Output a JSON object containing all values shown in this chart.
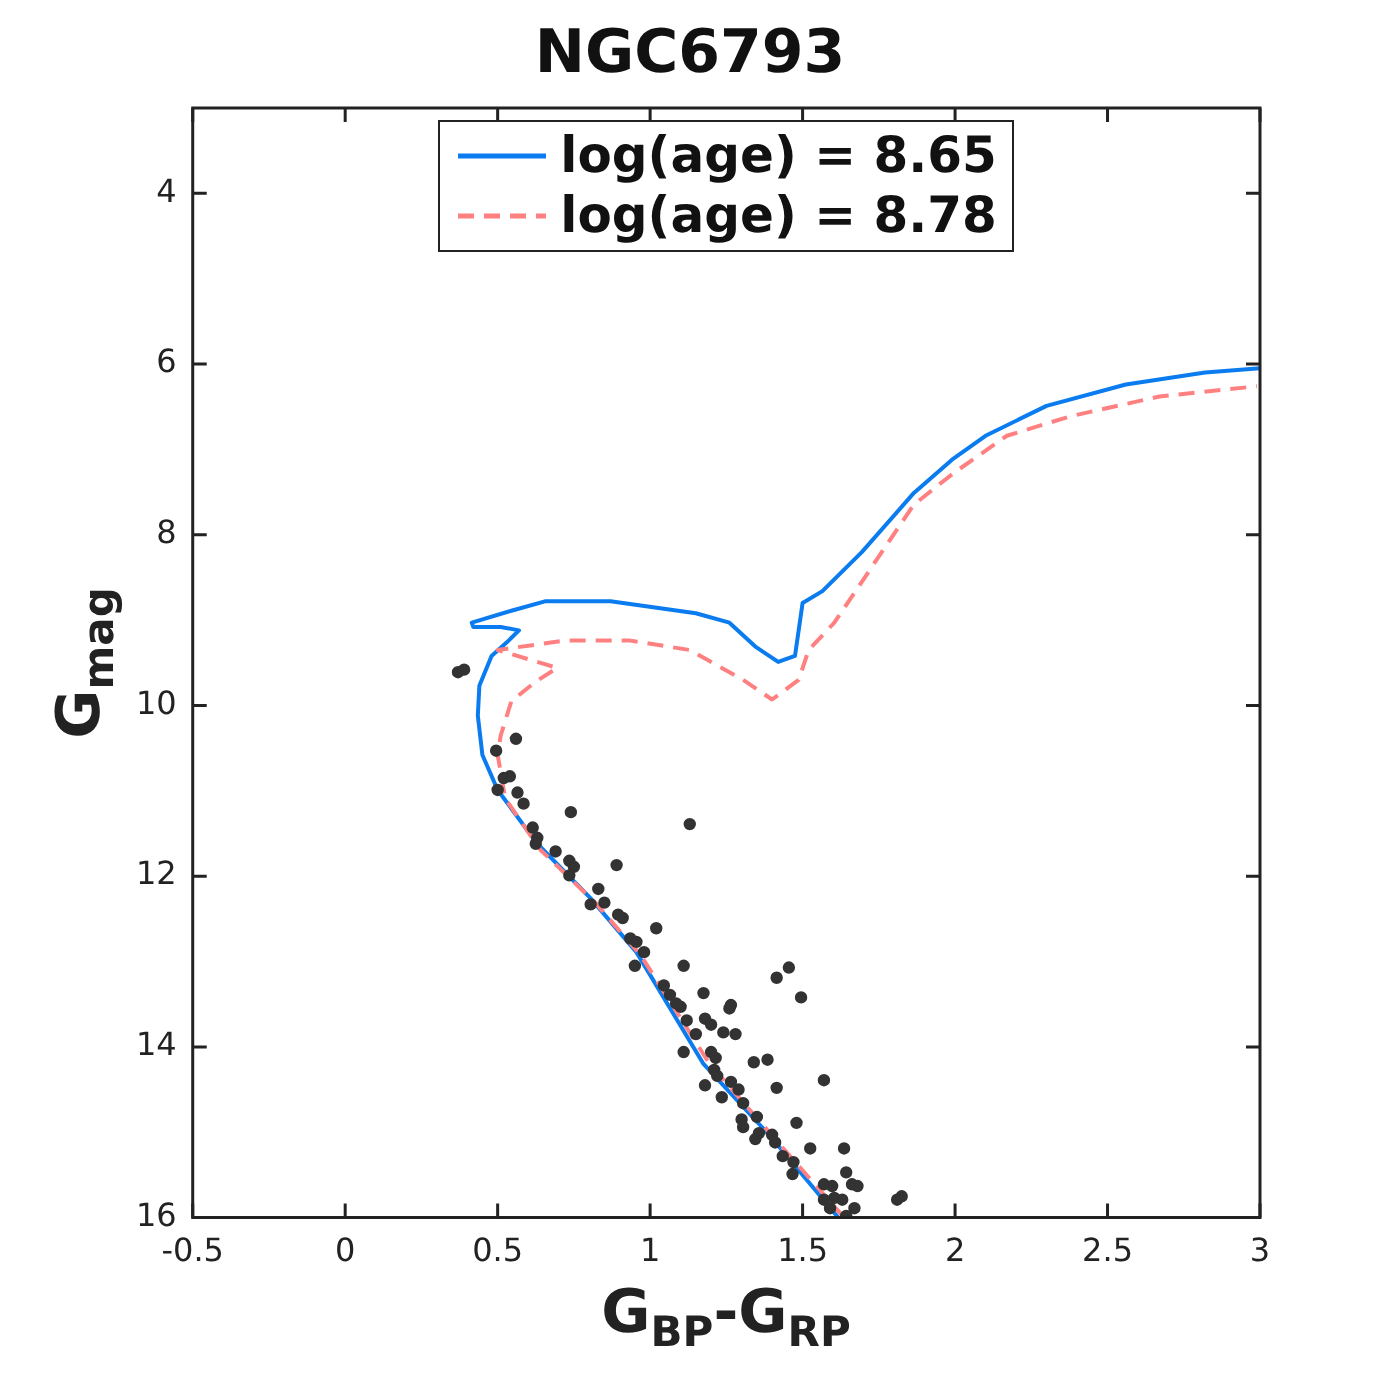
{
  "chart_data": {
    "type": "line",
    "title": "NGC6793",
    "xlabel": "G$_{BP}$-G$_{RP}$",
    "ylabel": "G$_{mag}$",
    "xlim": [
      -0.5,
      3
    ],
    "xticks": [
      -0.5,
      0,
      0.5,
      1,
      1.5,
      2,
      2.5,
      3
    ],
    "ylim": [
      16,
      3
    ],
    "yticks": [
      4,
      6,
      8,
      10,
      12,
      14,
      16
    ],
    "grid": false,
    "legend": "top",
    "series": [
      {
        "name": "log(age) = 8.65",
        "color": "#0a7cf0",
        "line_style": "solid",
        "marker": "none",
        "x": [
          1.617,
          1.39,
          1.175,
          0.955,
          0.805,
          0.63,
          0.5,
          0.45,
          0.435,
          0.44,
          0.48,
          0.53,
          0.57,
          0.51,
          0.42,
          0.415,
          0.545,
          0.655,
          0.87,
          1.15,
          1.26,
          1.345,
          1.42,
          1.475,
          1.5,
          1.565,
          1.695,
          1.865,
          1.99,
          2.1,
          2.3,
          2.56,
          2.82,
          3.0
        ],
        "values": [
          16.0,
          15.03,
          14.2,
          12.89,
          12.26,
          11.62,
          10.99,
          10.58,
          10.12,
          9.77,
          9.42,
          9.26,
          9.12,
          9.08,
          9.08,
          9.03,
          8.89,
          8.78,
          8.78,
          8.92,
          9.03,
          9.31,
          9.49,
          9.42,
          8.8,
          8.66,
          8.2,
          7.51,
          7.12,
          6.84,
          6.49,
          6.24,
          6.1,
          6.05
        ]
      },
      {
        "name": "log(age) = 8.78",
        "color": "#ff8080",
        "line_style": "dashed",
        "marker": "none",
        "x": [
          1.636,
          1.41,
          1.195,
          0.97,
          0.82,
          0.64,
          0.525,
          0.5,
          0.51,
          0.545,
          0.625,
          0.695,
          0.5,
          0.72,
          0.935,
          1.13,
          1.305,
          1.4,
          1.487,
          1.52,
          1.604,
          1.734,
          1.864,
          1.994,
          2.17,
          2.38,
          2.67,
          2.99
        ],
        "values": [
          16.0,
          15.08,
          14.2,
          12.93,
          12.31,
          11.69,
          11.09,
          10.58,
          10.35,
          9.95,
          9.72,
          9.56,
          9.35,
          9.24,
          9.24,
          9.35,
          9.7,
          9.93,
          9.7,
          9.35,
          9.03,
          8.34,
          7.65,
          7.28,
          6.84,
          6.61,
          6.38,
          6.26
        ]
      },
      {
        "type": "scatter",
        "color": "#333333",
        "marker": "circle",
        "x": [
          0.37,
          0.39,
          0.56,
          0.495,
          0.52,
          0.54,
          0.5,
          0.565,
          0.585,
          0.74,
          1.13,
          0.615,
          0.63,
          0.625,
          0.69,
          0.735,
          0.75,
          0.735,
          0.89,
          0.83,
          0.85,
          0.805,
          0.895,
          0.91,
          1.02,
          0.955,
          0.935,
          0.95,
          1.11,
          0.98,
          1.045,
          1.065,
          1.175,
          1.085,
          1.1,
          1.265,
          1.26,
          1.18,
          1.2,
          1.12,
          1.24,
          1.28,
          1.15,
          1.415,
          1.455,
          1.495,
          1.11,
          1.2,
          1.215,
          1.34,
          1.385,
          1.21,
          1.22,
          1.18,
          1.265,
          1.29,
          1.235,
          1.305,
          1.415,
          1.57,
          1.35,
          1.3,
          1.305,
          1.357,
          1.48,
          1.4,
          1.345,
          1.41,
          1.435,
          1.47,
          1.525,
          1.636,
          1.643,
          1.467,
          1.662,
          1.68,
          1.57,
          1.597,
          1.604,
          1.63,
          1.57,
          1.67,
          1.643,
          1.59,
          1.81,
          1.825
        ],
        "values": [
          9.61,
          9.58,
          10.39,
          10.53,
          10.85,
          10.83,
          10.99,
          11.02,
          11.15,
          11.25,
          11.39,
          11.43,
          11.55,
          11.62,
          11.71,
          11.82,
          11.89,
          11.99,
          11.87,
          12.15,
          12.31,
          12.33,
          12.45,
          12.49,
          12.61,
          12.77,
          12.73,
          13.05,
          13.05,
          12.89,
          13.28,
          13.39,
          13.37,
          13.49,
          13.53,
          13.51,
          13.55,
          13.67,
          13.74,
          13.69,
          13.83,
          13.85,
          13.85,
          13.19,
          13.07,
          13.42,
          14.06,
          14.06,
          14.13,
          14.18,
          14.15,
          14.27,
          14.34,
          14.45,
          14.41,
          14.5,
          14.59,
          14.66,
          14.48,
          14.39,
          14.82,
          14.85,
          14.94,
          15.01,
          14.89,
          15.03,
          15.08,
          15.12,
          15.28,
          15.35,
          15.19,
          15.19,
          15.47,
          15.49,
          15.61,
          15.63,
          15.61,
          15.63,
          15.77,
          15.79,
          15.79,
          15.89,
          15.98,
          15.89,
          15.79,
          15.75
        ]
      }
    ]
  }
}
